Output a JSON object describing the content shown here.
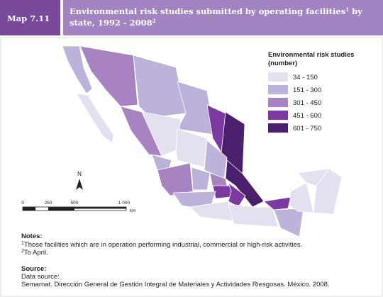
{
  "header": {
    "label": "Map 7.11",
    "title_lines": [
      [
        "Environmental risk studies submitted by operating facilities",
        "1",
        " by"
      ],
      [
        "state, 1992 - 2008",
        "2"
      ]
    ]
  },
  "legend": {
    "title": "Environmental risk studies",
    "subtitle": "(number)",
    "classes": [
      {
        "label": "34 - 150",
        "color": "#e3e1f0"
      },
      {
        "label": "151 - 300",
        "color": "#bdb2da"
      },
      {
        "label": "301 - 450",
        "color": "#a783c1"
      },
      {
        "label": "451 - 600",
        "color": "#7b3a9f"
      },
      {
        "label": "601 - 750",
        "color": "#4a1f6c"
      }
    ]
  },
  "north": "N",
  "scale": {
    "labels": [
      "0",
      "250",
      "500",
      "1 000"
    ],
    "unit": "km"
  },
  "notes": {
    "heading": "Notes:",
    "items": [
      {
        "mark": "1",
        "text": "Those facilities which are in operation performing industrial, commercial or high-risk activities."
      },
      {
        "mark": "2",
        "text": "To April."
      }
    ]
  },
  "source": {
    "heading": "Source:",
    "lines": [
      "Data source:",
      "Semarnat. Dirección General de Gestión Integral de Materiales y Actividades Riesgosas. México. 2008."
    ]
  }
}
